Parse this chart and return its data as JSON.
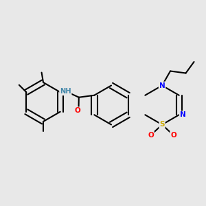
{
  "bg_color": "#e8e8e8",
  "atom_colors": {
    "N": "#0000FF",
    "S": "#CCAA00",
    "O": "#FF0000",
    "H": "#4488AA",
    "C": "#000000"
  },
  "bond_color": "#000000",
  "bond_width": 1.5
}
